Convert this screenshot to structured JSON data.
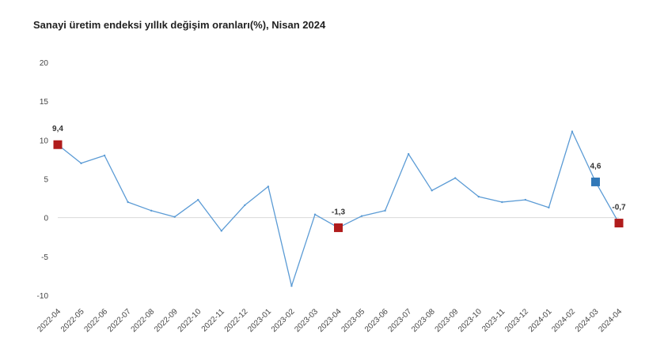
{
  "chart_data": {
    "type": "line",
    "title": "Sanayi üretim endeksi yıllık değişim oranları(%), Nisan 2024",
    "xlabel": "",
    "ylabel": "",
    "ylim": [
      -10,
      20
    ],
    "yticks": [
      -10,
      -5,
      0,
      5,
      10,
      15,
      20
    ],
    "grid": false,
    "categories": [
      "2022-04",
      "2022-05",
      "2022-06",
      "2022-07",
      "2022-08",
      "2022-09",
      "2022-10",
      "2022-11",
      "2022-12",
      "2023-01",
      "2023-02",
      "2023-03",
      "2023-04",
      "2023-05",
      "2023-06",
      "2023-07",
      "2023-08",
      "2023-09",
      "2023-10",
      "2023-11",
      "2023-12",
      "2024-01",
      "2024-02",
      "2024-03",
      "2024-04"
    ],
    "series": [
      {
        "values": [
          9.4,
          7.0,
          8.0,
          2.0,
          0.9,
          0.1,
          2.3,
          -1.7,
          1.6,
          4.0,
          -8.8,
          0.4,
          -1.3,
          0.2,
          0.9,
          8.2,
          3.5,
          5.1,
          2.7,
          2.0,
          2.3,
          1.3,
          11.1,
          4.6,
          -0.7
        ],
        "color": "#5b9bd5"
      }
    ],
    "highlights": [
      {
        "index": 0,
        "label": "9,4",
        "color": "#b01c1c"
      },
      {
        "index": 12,
        "label": "-1,3",
        "color": "#b01c1c"
      },
      {
        "index": 23,
        "label": "4,6",
        "color": "#3178b8"
      },
      {
        "index": 24,
        "label": "-0,7",
        "color": "#b01c1c"
      }
    ],
    "zero_line_color": "#d9d9d9"
  }
}
